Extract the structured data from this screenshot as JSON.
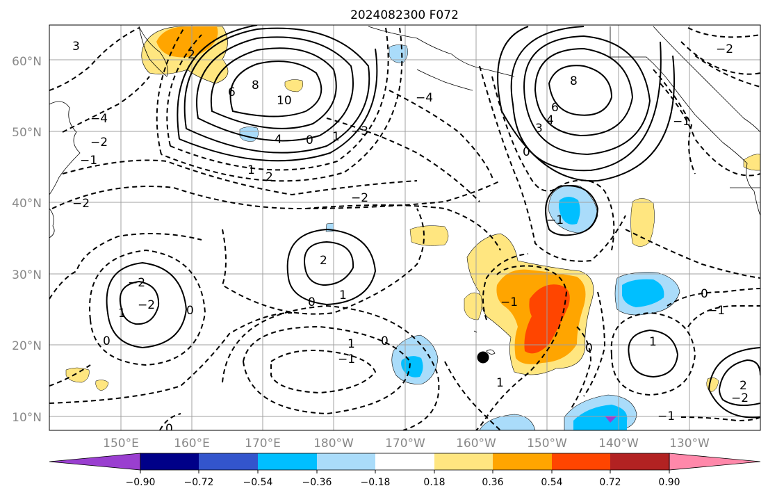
{
  "title": "2024082300 F072",
  "lat_labels": [
    "60°N",
    "50°N",
    "40°N",
    "30°N",
    "20°N",
    "10°N"
  ],
  "lon_labels": [
    "150°E",
    "160°E",
    "170°E",
    "180°W",
    "170°W",
    "160°W",
    "150°W",
    "140°W",
    "130°W"
  ],
  "colorbar": {
    "colors": [
      "#9a3fd0",
      "#000088",
      "#3355cc",
      "#00bfff",
      "#aadcfa",
      "#ffffff",
      "#ffe680",
      "#ffa500",
      "#ff4500",
      "#b22222",
      "#ff88aa"
    ],
    "tick_labels": [
      "−0.90",
      "−0.72",
      "−0.54",
      "−0.36",
      "−0.18",
      "0.18",
      "0.36",
      "0.54",
      "0.72",
      "0.90"
    ]
  },
  "contour_labels": [
    "3",
    "2",
    "6",
    "8",
    "10",
    "4",
    "0",
    "1",
    "−3",
    "−4",
    "−2",
    "−1",
    "1",
    "8",
    "6",
    "4",
    "3",
    "0",
    "−1",
    "−2",
    "2",
    "2",
    "1",
    "−2",
    "0",
    "−1",
    "−2",
    "0",
    "−2",
    "1",
    "0",
    "1",
    "0",
    "−1",
    "0",
    "1",
    "1",
    "2",
    "−1",
    "0",
    "−4",
    "−2",
    "−1",
    "−2",
    "−1",
    "0"
  ],
  "marker": "black dot near 159°W 18°N"
}
